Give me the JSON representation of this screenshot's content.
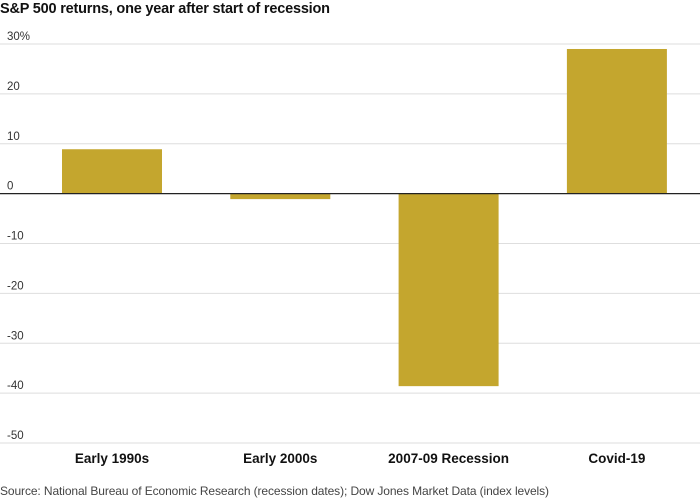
{
  "chart_data": {
    "type": "bar",
    "title": "S&P 500 returns, one year after start of recession",
    "categories": [
      "Early 1990s",
      "Early 2000s",
      "2007-09 Recession",
      "Covid-19"
    ],
    "values": [
      8.9,
      -1.1,
      -38.6,
      29.0
    ],
    "ylim": [
      -50,
      30
    ],
    "yticks": [
      30,
      20,
      10,
      0,
      -10,
      -20,
      -30,
      -40,
      -50
    ],
    "ytick_labels": [
      "30%",
      "20",
      "10",
      "0",
      "-10",
      "-20",
      "-30",
      "-40",
      "-50"
    ],
    "xlabel": "",
    "ylabel": "",
    "grid": true,
    "bar_color": "#c4a62e",
    "source": "Source: National Bureau of Economic Research (recession dates); Dow Jones Market Data (index levels)"
  }
}
